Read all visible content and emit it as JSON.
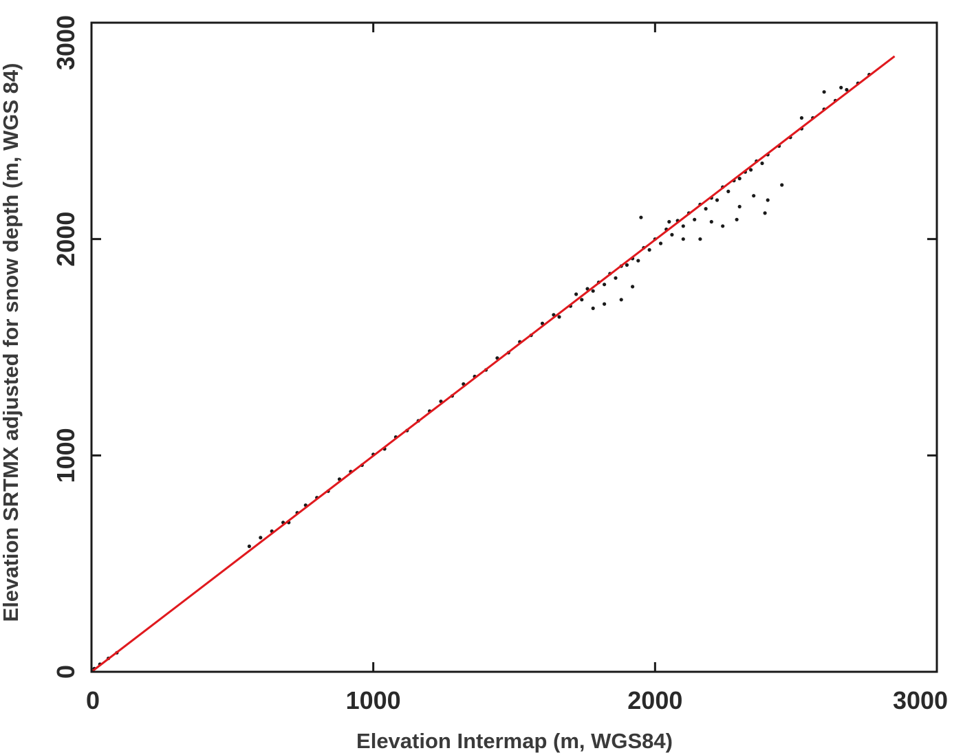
{
  "chart_data": {
    "type": "scatter",
    "title": "",
    "xlabel": "Elevation Intermap (m, WGS84)",
    "ylabel": "Elevation SRTMX adjusted for snow depth (m, WGS 84)",
    "xlim": [
      0,
      3000
    ],
    "ylim": [
      0,
      3000
    ],
    "xticks": [
      0,
      1000,
      2000,
      3000
    ],
    "yticks": [
      0,
      1000,
      2000,
      3000
    ],
    "xtick_labels": [
      "0",
      "1000",
      "2000",
      "3000"
    ],
    "ytick_labels": [
      "0",
      "1000",
      "2000",
      "3000"
    ],
    "grid": false,
    "legend": "none",
    "colors": {
      "points": "#1a1a1a",
      "fit_line": "#e0191e",
      "axes": "#1a1a1a"
    },
    "series": [
      {
        "type": "scatter",
        "x": [
          10,
          30,
          60,
          90,
          560,
          600,
          640,
          680,
          700,
          730,
          760,
          800,
          840,
          880,
          920,
          960,
          1000,
          1040,
          1080,
          1120,
          1160,
          1200,
          1240,
          1280,
          1320,
          1360,
          1400,
          1440,
          1480,
          1520,
          1560,
          1600,
          1640,
          1660,
          1700,
          1720,
          1740,
          1760,
          1780,
          1800,
          1820,
          1840,
          1860,
          1880,
          1900,
          1920,
          1940,
          1960,
          1980,
          2000,
          2020,
          2040,
          2060,
          2080,
          2100,
          2120,
          2140,
          2160,
          2180,
          2200,
          2220,
          2240,
          2260,
          2280,
          2300,
          2320,
          2340,
          2360,
          2380,
          2400,
          2440,
          2480,
          2520,
          2560,
          2600,
          2640,
          2680,
          2720,
          2760,
          1950,
          2050,
          2100,
          2200,
          2300,
          2350,
          2400,
          2450,
          1780,
          1820,
          1880,
          1920,
          2160,
          2240,
          2290,
          2390,
          2520,
          2600,
          2660
        ],
        "y": [
          15,
          35,
          62,
          88,
          580,
          620,
          650,
          690,
          690,
          735,
          770,
          805,
          835,
          890,
          925,
          955,
          1005,
          1030,
          1085,
          1115,
          1160,
          1205,
          1250,
          1275,
          1330,
          1365,
          1395,
          1450,
          1475,
          1525,
          1555,
          1610,
          1650,
          1640,
          1690,
          1745,
          1720,
          1770,
          1760,
          1800,
          1790,
          1840,
          1820,
          1875,
          1880,
          1910,
          1900,
          1960,
          1950,
          2000,
          1980,
          2045,
          2020,
          2085,
          2060,
          2120,
          2090,
          2160,
          2140,
          2190,
          2180,
          2240,
          2220,
          2270,
          2280,
          2310,
          2320,
          2360,
          2350,
          2390,
          2430,
          2470,
          2510,
          2560,
          2600,
          2640,
          2690,
          2720,
          2760,
          2100,
          2080,
          2000,
          2080,
          2150,
          2200,
          2180,
          2250,
          1680,
          1700,
          1720,
          1780,
          2000,
          2060,
          2090,
          2120,
          2560,
          2680,
          2700
        ]
      },
      {
        "type": "line",
        "x": [
          0,
          2850
        ],
        "y": [
          0,
          2845
        ]
      }
    ]
  }
}
